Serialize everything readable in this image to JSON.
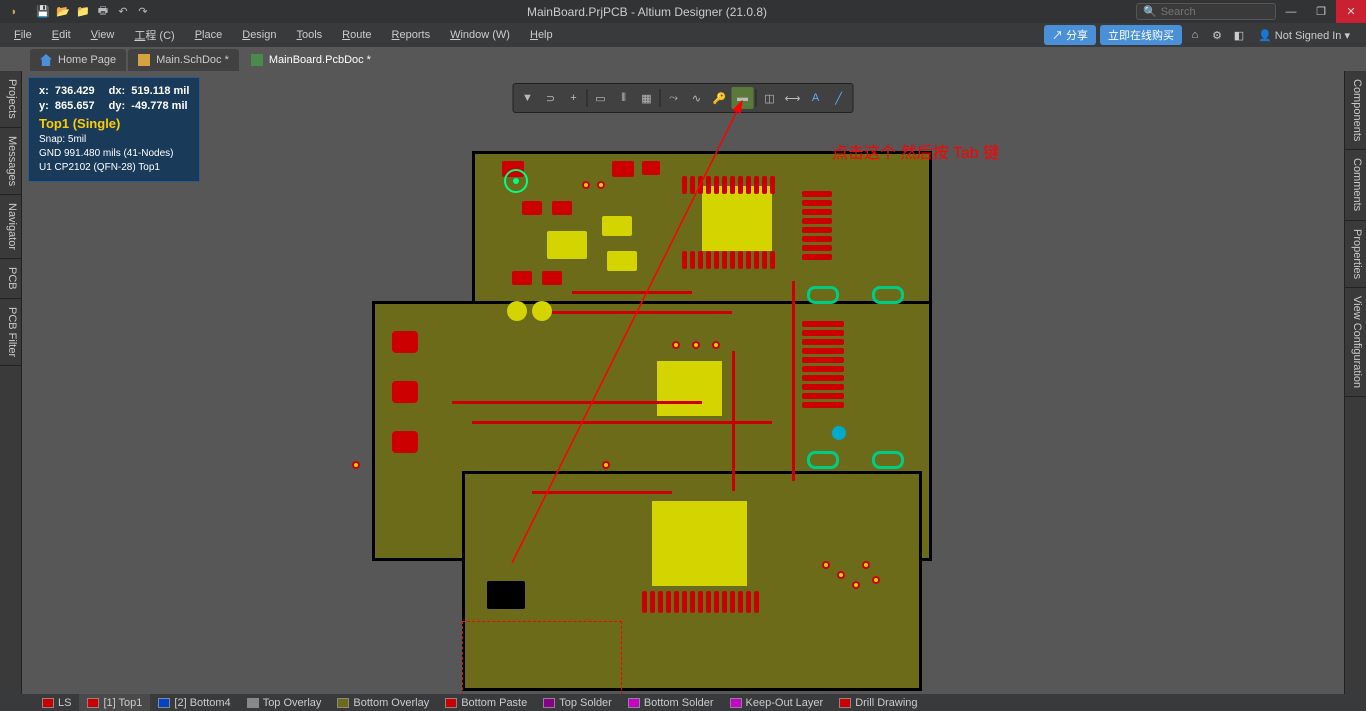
{
  "titlebar": {
    "title": "MainBoard.PrjPCB - Altium Designer (21.0.8)",
    "search_placeholder": "Search"
  },
  "menu": {
    "items": [
      "File",
      "Edit",
      "View",
      "工程 (C)",
      "Place",
      "Design",
      "Tools",
      "Route",
      "Reports",
      "Window (W)",
      "Help"
    ],
    "share": "分享",
    "buy": "立即在线购买",
    "signin": "Not Signed In"
  },
  "doctabs": [
    {
      "label": "Home Page",
      "type": "home"
    },
    {
      "label": "Main.SchDoc *",
      "type": "sch"
    },
    {
      "label": "MainBoard.PcbDoc *",
      "type": "pcb",
      "active": true
    }
  ],
  "left_panels": [
    "Projects",
    "Messages",
    "Navigator",
    "PCB",
    "PCB Filter"
  ],
  "right_panels": [
    "Components",
    "Comments",
    "Properties",
    "View Configuration"
  ],
  "hud": {
    "x_label": "x:",
    "x_val": "736.429",
    "dx_label": "dx:",
    "dx_val": "519.118 mil",
    "y_label": "y:",
    "y_val": "865.657",
    "dy_label": "dy:",
    "dy_val": "-49.778  mil",
    "layer": "Top1 (Single)",
    "snap": "Snap: 5mil",
    "net": "GND    991.480 mils  (41-Nodes)",
    "comp": "U1  CP2102 (QFN-28)  Top1"
  },
  "annotation": {
    "text": "点击这个 然后按 Tab 键",
    "arrow_from": [
      490,
      492
    ],
    "arrow_to": [
      720,
      90
    ]
  },
  "layer_tabs": [
    {
      "label": "LS",
      "color": "#cc0000"
    },
    {
      "label": "[1] Top1",
      "color": "#cc0000",
      "active": true
    },
    {
      "label": "[2] Bottom4",
      "color": "#0044cc"
    },
    {
      "label": "Top Overlay",
      "color": "#888888"
    },
    {
      "label": "Bottom Overlay",
      "color": "#6b6b1a"
    },
    {
      "label": "Bottom Paste",
      "color": "#cc0000"
    },
    {
      "label": "Top Solder",
      "color": "#880088"
    },
    {
      "label": "Bottom Solder",
      "color": "#cc00cc"
    },
    {
      "label": "Keep-Out Layer",
      "color": "#cc00cc"
    },
    {
      "label": "Drill Drawing",
      "color": "#cc0000"
    }
  ],
  "colors": {
    "bg": "#575757",
    "board": "#6b6b1a",
    "copper": "#cc0000",
    "pad": "#d4d400",
    "annot": "#ff0000",
    "hud_bg": "#1a3a5a",
    "layer_text": "#ffcc00"
  },
  "float_toolbar": [
    "filter",
    "snap",
    "center",
    "rect",
    "align",
    "grid",
    "route",
    "diff",
    "key",
    "fill",
    "measure",
    "dim",
    "text",
    "line"
  ]
}
